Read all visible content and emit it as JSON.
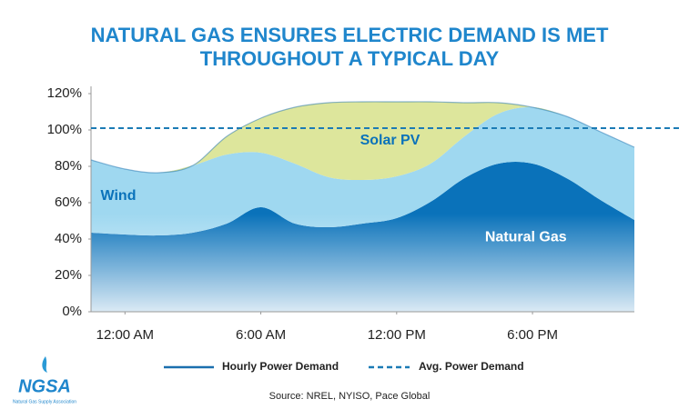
{
  "chart_data": {
    "type": "stacked_area",
    "title": [
      "NATURAL GAS ENSURES ELECTRIC DEMAND IS MET",
      "THROUGHOUT A TYPICAL DAY"
    ],
    "x": [
      -1.5,
      0,
      1.5,
      3,
      4.5,
      6,
      7.5,
      9,
      10.5,
      12,
      13.5,
      15,
      16.5,
      18,
      19.5,
      21,
      22.5
    ],
    "xlim": [
      -1.5,
      22.5
    ],
    "xticks": [
      {
        "value": 0,
        "label": "12:00 AM"
      },
      {
        "value": 6,
        "label": "6:00 AM"
      },
      {
        "value": 12,
        "label": "12:00 PM"
      },
      {
        "value": 18,
        "label": "6:00 PM"
      }
    ],
    "ylim": [
      0,
      120
    ],
    "yticks": [
      {
        "value": 0,
        "label": "0%"
      },
      {
        "value": 20,
        "label": "20%"
      },
      {
        "value": 40,
        "label": "40%"
      },
      {
        "value": 60,
        "label": "60%"
      },
      {
        "value": 80,
        "label": "80%"
      },
      {
        "value": 100,
        "label": "100%"
      },
      {
        "value": 120,
        "label": "120%"
      }
    ],
    "series": [
      {
        "name": "Natural Gas",
        "color": "#0a72ba",
        "label_color": "#ffffff",
        "values": [
          43.5,
          42.5,
          42,
          43.5,
          48.5,
          57.5,
          48.5,
          46.5,
          48.5,
          51.5,
          60.5,
          73.5,
          81.5,
          81.5,
          73.5,
          61.5,
          50.5
        ]
      },
      {
        "name": "Wind",
        "color": "#9fd8f0",
        "label_color": "#0a72ba",
        "values": [
          40,
          36,
          34.5,
          37,
          38,
          30,
          33,
          27.5,
          24,
          23,
          21,
          23,
          27.5,
          31,
          34,
          37.5,
          40
        ]
      },
      {
        "name": "Solar PV",
        "color": "#dde69c",
        "label_color": "#0a72ba",
        "values": [
          0,
          0,
          0,
          0,
          10,
          19,
          31,
          41,
          43,
          41,
          34,
          18.5,
          6,
          0,
          0,
          0,
          0
        ]
      }
    ],
    "demand": {
      "name": "Hourly Power Demand",
      "color": "#1b6fae",
      "values": [
        83.5,
        78.5,
        76.5,
        80.5,
        96.5,
        106.5,
        112.5,
        115,
        115.5,
        115.5,
        115.5,
        115,
        115,
        112.5,
        107.5,
        99,
        90.5
      ]
    },
    "avg_demand": {
      "name": "Avg. Power Demand",
      "color": "#1b7bb5",
      "value": 101
    }
  },
  "logo_text": "NGSA",
  "logo_subtitle": "Natural Gas Supply Association",
  "source": "Source: NREL, NYISO, Pace Global"
}
